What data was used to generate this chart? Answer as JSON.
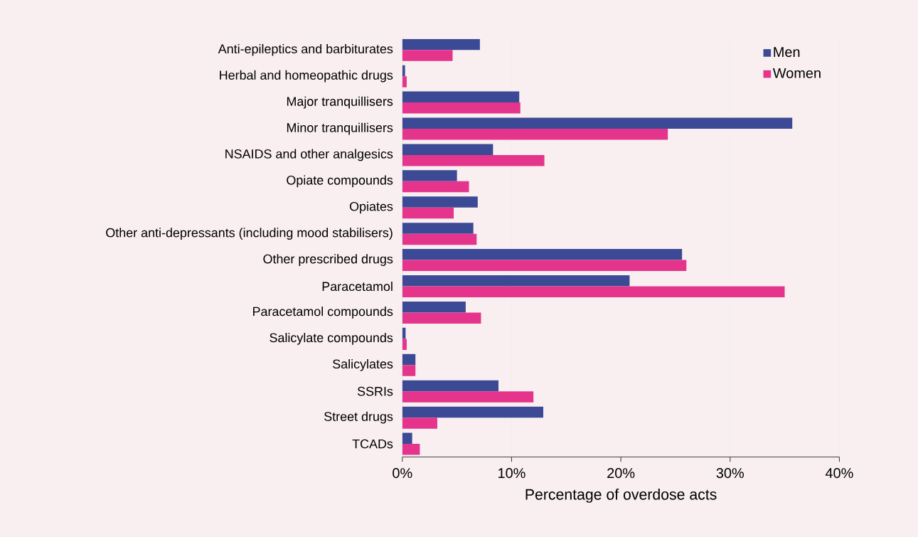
{
  "chart_data": {
    "type": "bar",
    "orientation": "horizontal",
    "xlabel": "Percentage of overdose acts",
    "categories": [
      "Anti-epileptics and barbiturates",
      "Herbal and homeopathic drugs",
      "Major tranquillisers",
      "Minor tranquillisers",
      "NSAIDS and other analgesics",
      "Opiate compounds",
      "Opiates",
      "Other anti-depressants (including mood stabilisers)",
      "Other prescribed drugs",
      "Paracetamol",
      "Paracetamol compounds",
      "Salicylate compounds",
      "Salicylates",
      "SSRIs",
      "Street drugs",
      "TCADs"
    ],
    "series": [
      {
        "name": "Men",
        "color": "#3c4a96",
        "values": [
          7.1,
          0.25,
          10.7,
          35.7,
          8.3,
          5.0,
          6.9,
          6.5,
          25.6,
          20.8,
          5.8,
          0.3,
          1.2,
          8.8,
          12.9,
          0.9
        ]
      },
      {
        "name": "Women",
        "color": "#e5348b",
        "values": [
          4.6,
          0.4,
          10.8,
          24.3,
          13.0,
          6.1,
          4.7,
          6.8,
          26.0,
          35.0,
          7.2,
          0.4,
          1.2,
          12.0,
          3.2,
          1.6
        ]
      }
    ],
    "xlim": [
      0,
      40
    ],
    "xticks": [
      {
        "value": 0,
        "label": "0%"
      },
      {
        "value": 10,
        "label": "10%"
      },
      {
        "value": 20,
        "label": "20%"
      },
      {
        "value": 30,
        "label": "30%"
      },
      {
        "value": 40,
        "label": "40%"
      }
    ],
    "grid": "x",
    "legend": "top right"
  }
}
